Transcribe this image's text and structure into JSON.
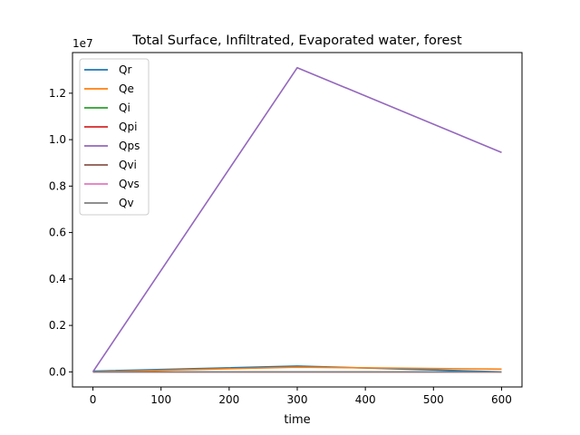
{
  "chart_data": {
    "type": "line",
    "title": "Total Surface, Infiltrated, Evaporated water, forest",
    "xlabel": "time",
    "ylabel": "",
    "y_offset_text": "1e7",
    "y_scale_factor": 10000000,
    "x": [
      0,
      300,
      600
    ],
    "xlim": [
      -30,
      630
    ],
    "ylim": [
      -650000,
      13750000
    ],
    "xticks": [
      0,
      100,
      200,
      300,
      400,
      500,
      600
    ],
    "yticks": [
      0,
      2000000,
      4000000,
      6000000,
      8000000,
      10000000,
      12000000
    ],
    "ytick_labels": [
      "0.0",
      "0.2",
      "0.4",
      "0.6",
      "0.8",
      "1.0",
      "1.2"
    ],
    "grid": false,
    "legend_position": "top-left",
    "series": [
      {
        "name": "Qr",
        "color": "#1f77b4",
        "values": [
          30000,
          250000,
          0
        ]
      },
      {
        "name": "Qe",
        "color": "#ff7f0e",
        "values": [
          0,
          200000,
          120000
        ]
      },
      {
        "name": "Qi",
        "color": "#2ca02c",
        "values": [
          0,
          0,
          0
        ]
      },
      {
        "name": "Qpi",
        "color": "#d62728",
        "values": [
          0,
          0,
          0
        ]
      },
      {
        "name": "Qps",
        "color": "#9467bd",
        "values": [
          0,
          13100000,
          9450000
        ]
      },
      {
        "name": "Qvi",
        "color": "#8c564b",
        "values": [
          0,
          0,
          0
        ]
      },
      {
        "name": "Qvs",
        "color": "#e377c2",
        "values": [
          0,
          0,
          0
        ]
      },
      {
        "name": "Qv",
        "color": "#7f7f7f",
        "values": [
          0,
          0,
          0
        ]
      }
    ]
  }
}
